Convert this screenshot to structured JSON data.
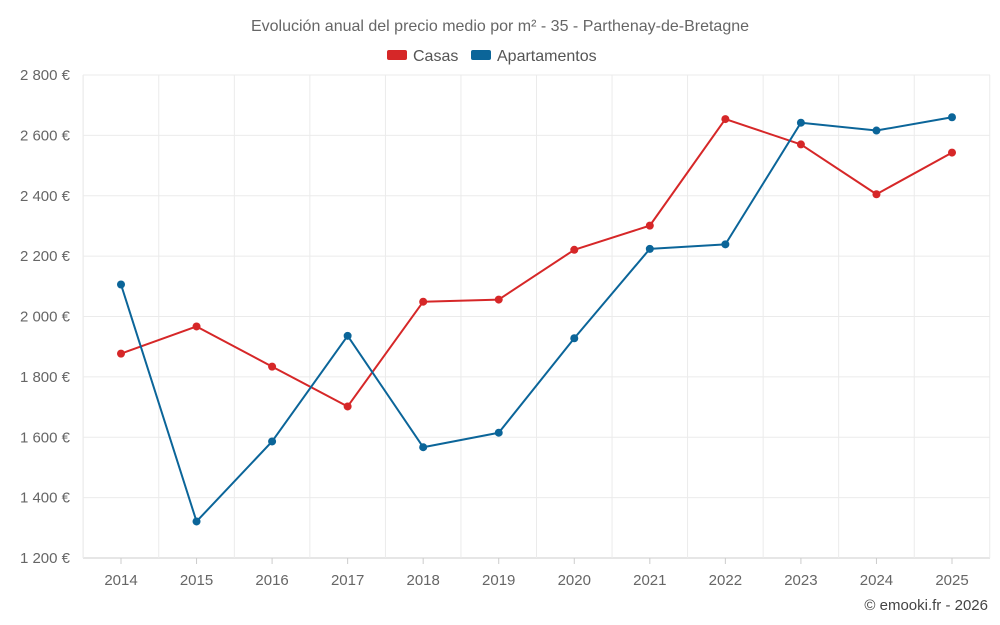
{
  "chart_data": {
    "type": "line",
    "title": "Evolución anual del precio medio por m² - 35 - Parthenay-de-Bretagne",
    "categories": [
      "2014",
      "2015",
      "2016",
      "2017",
      "2018",
      "2019",
      "2020",
      "2021",
      "2022",
      "2023",
      "2024",
      "2025"
    ],
    "series": [
      {
        "name": "Casas",
        "color": "#d62728",
        "values": [
          1877,
          1967,
          1834,
          1702,
          2049,
          2056,
          2221,
          2301,
          2654,
          2570,
          2405,
          2543
        ]
      },
      {
        "name": "Apartamentos",
        "color": "#0b6599",
        "values": [
          2106,
          1321,
          1586,
          1936,
          1567,
          1615,
          1928,
          2224,
          2239,
          2642,
          2616,
          2660
        ]
      }
    ],
    "ylim": [
      1200,
      2800
    ],
    "yticks": [
      1200,
      1400,
      1600,
      1800,
      2000,
      2200,
      2400,
      2600,
      2800
    ],
    "ytick_labels": [
      "1 200 €",
      "1 400 €",
      "1 600 €",
      "1 800 €",
      "2 000 €",
      "2 200 €",
      "2 400 €",
      "2 600 €",
      "2 800 €"
    ],
    "xlabel": "",
    "ylabel": "",
    "grid": true,
    "legend_position": "top-center"
  },
  "credit": "© emooki.fr - 2026"
}
